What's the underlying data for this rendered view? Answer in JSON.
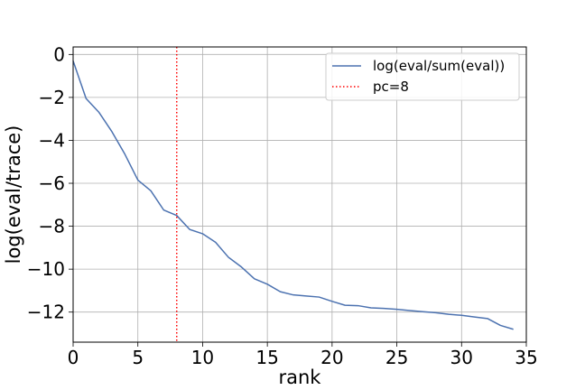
{
  "chart_data": {
    "type": "line",
    "title": "",
    "xlabel": "rank",
    "ylabel": "log(eval/trace)",
    "xlim": [
      0,
      35
    ],
    "ylim": [
      -13.4,
      0.35
    ],
    "grid": true,
    "legend_position": "top-right",
    "x_ticks": [
      0,
      5,
      10,
      15,
      20,
      25,
      30,
      35
    ],
    "y_ticks": [
      0,
      -2,
      -4,
      -6,
      -8,
      -10,
      -12
    ],
    "x_tick_labels": [
      "0",
      "5",
      "10",
      "15",
      "20",
      "25",
      "30",
      "35"
    ],
    "y_tick_labels": [
      "0",
      "−2",
      "−4",
      "−6",
      "−8",
      "−10",
      "−12"
    ],
    "series": [
      {
        "name": "log(eval/sum(eval))",
        "color": "#4c72b0",
        "style": "solid",
        "x": [
          0,
          1,
          2,
          3,
          4,
          5,
          6,
          7,
          8,
          9,
          10,
          11,
          12,
          13,
          14,
          15,
          16,
          17,
          18,
          19,
          20,
          21,
          22,
          23,
          24,
          25,
          26,
          27,
          28,
          29,
          30,
          31,
          32,
          33,
          34
        ],
        "y": [
          -0.3,
          -2.05,
          -2.7,
          -3.6,
          -4.65,
          -5.85,
          -6.35,
          -7.25,
          -7.5,
          -8.15,
          -8.35,
          -8.75,
          -9.45,
          -9.9,
          -10.45,
          -10.7,
          -11.05,
          -11.2,
          -11.25,
          -11.3,
          -11.5,
          -11.68,
          -11.7,
          -11.8,
          -11.83,
          -11.87,
          -11.93,
          -11.98,
          -12.03,
          -12.1,
          -12.15,
          -12.23,
          -12.3,
          -12.62,
          -12.8
        ]
      }
    ],
    "vlines": [
      {
        "name": "pc=8",
        "x": 8,
        "color": "#ff0000",
        "style": "dotted"
      }
    ]
  }
}
